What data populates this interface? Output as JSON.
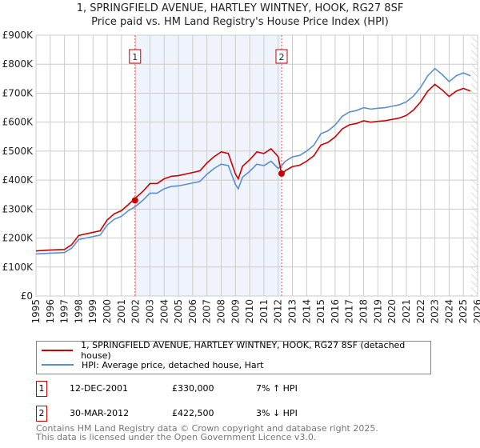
{
  "chart_data": {
    "type": "line",
    "title": "1, SPRINGFIELD AVENUE, HARTLEY WINTNEY, HOOK, RG27 8SF",
    "subtitle": "Price paid vs. HM Land Registry's House Price Index (HPI)",
    "xlim": [
      1995,
      2026
    ],
    "ylim": [
      0,
      900000
    ],
    "x_ticks": [
      "1995",
      "1996",
      "1997",
      "1998",
      "1999",
      "2000",
      "2001",
      "2002",
      "2003",
      "2004",
      "2005",
      "2006",
      "2007",
      "2008",
      "2009",
      "2010",
      "2011",
      "2012",
      "2013",
      "2014",
      "2015",
      "2016",
      "2017",
      "2018",
      "2019",
      "2020",
      "2021",
      "2022",
      "2023",
      "2024",
      "2025",
      "2026"
    ],
    "y_ticks": [
      {
        "v": 0,
        "label": "£0"
      },
      {
        "v": 100000,
        "label": "£100K"
      },
      {
        "v": 200000,
        "label": "£200K"
      },
      {
        "v": 300000,
        "label": "£300K"
      },
      {
        "v": 400000,
        "label": "£400K"
      },
      {
        "v": 500000,
        "label": "£500K"
      },
      {
        "v": 600000,
        "label": "£600K"
      },
      {
        "v": 700000,
        "label": "£700K"
      },
      {
        "v": 800000,
        "label": "£800K"
      },
      {
        "v": 900000,
        "label": "£900K"
      }
    ],
    "grid": true,
    "shaded_range": [
      2001.95,
      2012.24
    ],
    "future_hatch_from": 2025.55,
    "series": [
      {
        "name": "1, SPRINGFIELD AVENUE, HARTLEY WINTNEY, HOOK, RG27 8SF (detached house)",
        "color": "#cc0000"
      },
      {
        "name": "HPI: Average price, detached house, Hart",
        "color": "#5b8fd0",
        "x": [
          1995,
          1996,
          1997,
          1997.5,
          1998,
          1999,
          1999.5,
          2000,
          2000.5,
          2001,
          2001.5,
          2001.95,
          2002.5,
          2003,
          2003.5,
          2004,
          2004.5,
          2005,
          2006,
          2006.5,
          2007,
          2007.5,
          2008,
          2008.5,
          2009,
          2009.2,
          2009.5,
          2010,
          2010.5,
          2011,
          2011.5,
          2012,
          2012.25,
          2012.5,
          2013,
          2013.5,
          2014,
          2014.5,
          2015,
          2015.5,
          2016,
          2016.5,
          2017,
          2017.5,
          2018,
          2018.5,
          2019,
          2019.5,
          2020,
          2020.5,
          2021,
          2021.5,
          2022,
          2022.5,
          2023,
          2023.5,
          2024,
          2024.5,
          2025,
          2025.5
        ],
        "y": [
          145000,
          148000,
          150000,
          165000,
          195000,
          205000,
          210000,
          245000,
          265000,
          275000,
          295000,
          308000,
          330000,
          355000,
          355000,
          370000,
          378000,
          380000,
          390000,
          395000,
          420000,
          440000,
          455000,
          450000,
          385000,
          370000,
          410000,
          430000,
          455000,
          450000,
          465000,
          440000,
          450000,
          465000,
          480000,
          485000,
          500000,
          520000,
          560000,
          570000,
          590000,
          620000,
          635000,
          640000,
          650000,
          645000,
          648000,
          650000,
          655000,
          660000,
          670000,
          690000,
          720000,
          760000,
          785000,
          765000,
          740000,
          760000,
          770000,
          760000
        ]
      }
    ],
    "sales": [
      {
        "id": "1",
        "x": 2001.95,
        "price": 330000,
        "date": "12-DEC-2001",
        "price_label": "£330,000",
        "hpi": "7% ↑ HPI"
      },
      {
        "id": "2",
        "x": 2012.24,
        "price": 422500,
        "date": "30-MAR-2012",
        "price_label": "£422,500",
        "hpi": "3% ↓ HPI"
      }
    ]
  },
  "footer": {
    "line1": "Contains HM Land Registry data © Crown copyright and database right 2025.",
    "line2": "This data is licensed under the Open Government Licence v3.0."
  }
}
